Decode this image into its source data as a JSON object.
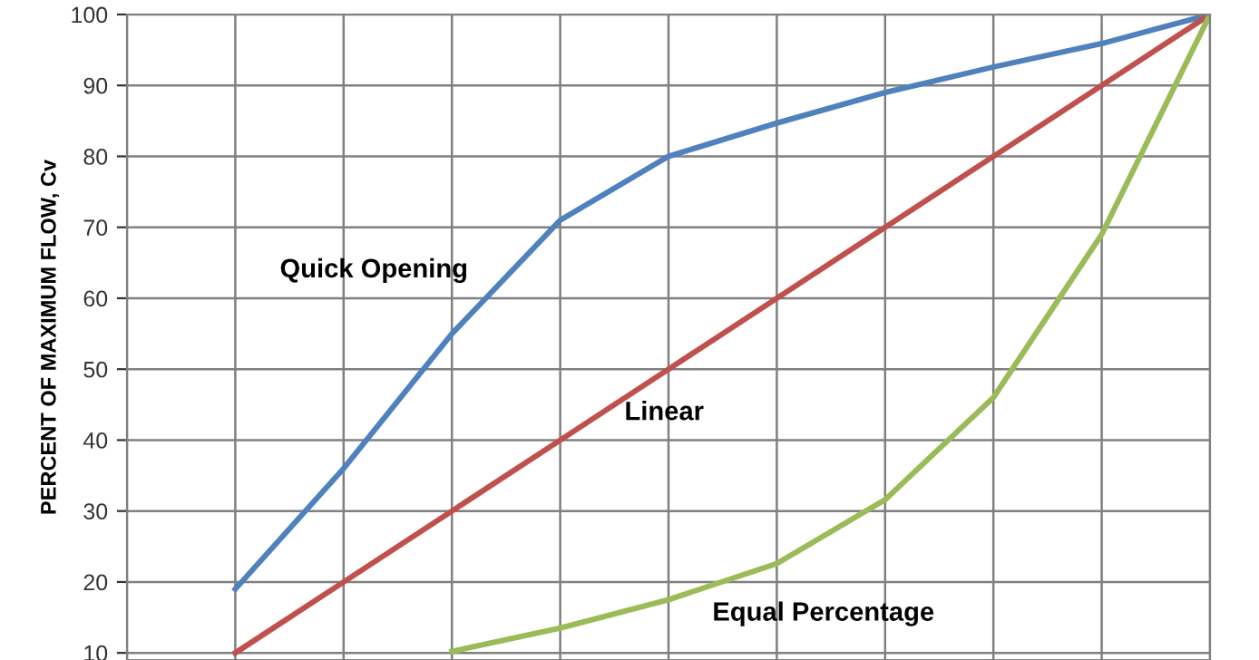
{
  "chart_data": {
    "type": "line",
    "ylabel": "PERCENT OF MAXIMUM FLOW, Cv",
    "categories": [
      null,
      null,
      null,
      null,
      null,
      null,
      null,
      null,
      null,
      null,
      null
    ],
    "ylim": [
      9,
      100
    ],
    "yticks": [
      10,
      20,
      30,
      40,
      50,
      60,
      70,
      80,
      90,
      100
    ],
    "grid": true,
    "legend": false,
    "marker": "none",
    "line_style": "solid",
    "series": [
      {
        "name": "Quick Opening",
        "color": "#4f81bd",
        "values": [
          null,
          19,
          36,
          55,
          71,
          80,
          84.7,
          89,
          92.6,
          95.9,
          100
        ]
      },
      {
        "name": "Linear",
        "color": "#c0504d",
        "values": [
          null,
          10,
          20,
          30,
          40,
          50,
          60,
          70,
          80,
          90,
          100
        ]
      },
      {
        "name": "Equal Percentage",
        "color": "#9bbb59",
        "values": [
          null,
          null,
          null,
          10.2,
          13.5,
          17.5,
          22.6,
          31.6,
          46,
          69,
          100
        ]
      }
    ]
  }
}
